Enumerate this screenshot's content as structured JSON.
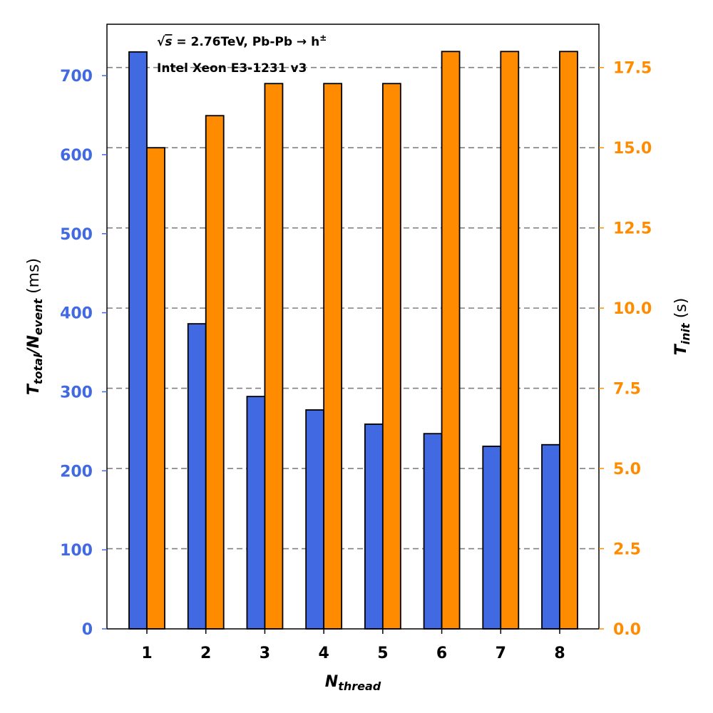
{
  "chart_data": {
    "type": "bar",
    "title": "",
    "categories": [
      "1",
      "2",
      "3",
      "4",
      "5",
      "6",
      "7",
      "8"
    ],
    "series": [
      {
        "name": "T_total/N_event",
        "axis": "left",
        "color": "#4169E1",
        "values": [
          730,
          386,
          294,
          277,
          259,
          247,
          231,
          233
        ]
      },
      {
        "name": "T_init",
        "axis": "right",
        "color": "#FF8C00",
        "values": [
          15.0,
          16.0,
          17.0,
          17.0,
          17.0,
          18.0,
          18.0,
          18.0
        ]
      }
    ],
    "xlabel": {
      "main": "N",
      "sub": "thread"
    },
    "ylabel_left": {
      "main1": "T",
      "sub1": "total",
      "slash": "/",
      "main2": "N",
      "sub2": "event",
      "unit": " (ms)"
    },
    "ylabel_right": {
      "main": "T",
      "sub": "init",
      "unit": " (s)"
    },
    "ylim_left": [
      0,
      765
    ],
    "ylim_right": [
      0,
      18.85
    ],
    "yticks_left": [
      "0",
      "100",
      "200",
      "300",
      "400",
      "500",
      "600",
      "700"
    ],
    "yticks_right": [
      "0.0",
      "2.5",
      "5.0",
      "7.5",
      "10.0",
      "12.5",
      "15.0",
      "17.5"
    ],
    "grid": "horizontal dashed at right-axis ticks",
    "annotation": {
      "line1_prefix": "√",
      "line1_var": "s",
      "line1_rest": " = 2.76TeV, Pb-Pb → h",
      "line1_sup": "±",
      "line2": "Intel Xeon E3-1231 v3"
    },
    "colors": {
      "left_axis": "#4169E1",
      "right_axis": "#FF8C00",
      "grid": "#808080",
      "bar_edge": "#000000"
    }
  }
}
